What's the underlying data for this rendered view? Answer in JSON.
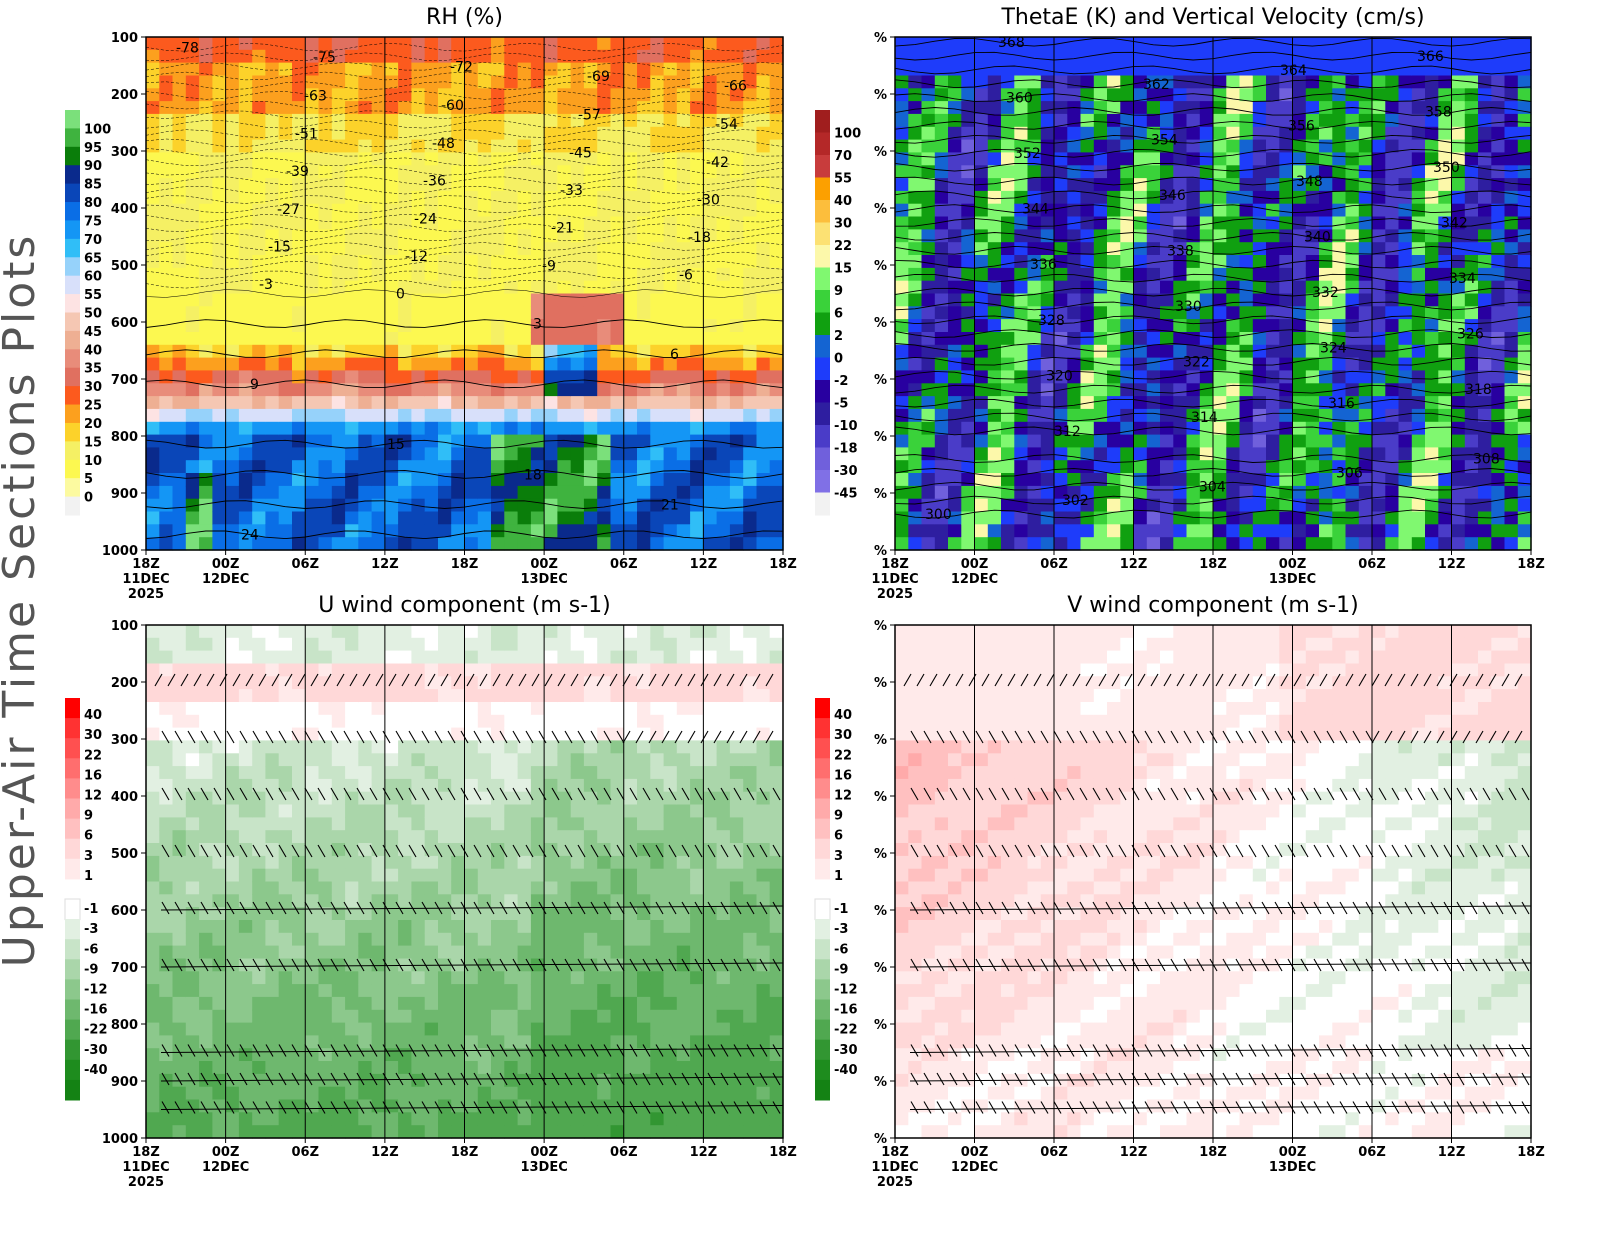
{
  "side_title": "Upper-Air Time Sections Plots",
  "colors": {
    "frame": "#000000",
    "side_title": "#555555"
  },
  "chart_data": [
    {
      "type": "heatmap",
      "title": "RH (%)",
      "x_ticks": [
        "18Z",
        "00Z",
        "06Z",
        "12Z",
        "18Z",
        "00Z",
        "06Z",
        "12Z",
        "18Z"
      ],
      "x_date_labels": [
        "11DEC",
        "12DEC",
        "",
        "",
        "",
        "13DEC",
        "",
        "",
        ""
      ],
      "x_year_label": "2025",
      "y_ticks": [
        "100",
        "200",
        "300",
        "400",
        "500",
        "600",
        "700",
        "800",
        "900",
        "1000"
      ],
      "ylim": [
        1000,
        100
      ],
      "colorbar": {
        "labels": [
          "100",
          "95",
          "90",
          "85",
          "80",
          "75",
          "70",
          "65",
          "60",
          "55",
          "50",
          "45",
          "40",
          "35",
          "30",
          "25",
          "20",
          "15",
          "10",
          "5",
          "0"
        ],
        "colors": [
          "#7be07b",
          "#3fb33f",
          "#0a7d0a",
          "#0a2a8c",
          "#0a46b8",
          "#0a6ee6",
          "#1496f5",
          "#30bef7",
          "#96d2fa",
          "#d8e0fa",
          "#fde3e3",
          "#f5c7b3",
          "#eeaf93",
          "#e88c7a",
          "#e07060",
          "#fc5a1e",
          "#fca01e",
          "#fcd22a",
          "#f5f064",
          "#fcf850",
          "#fcfaa0",
          "#f2f2f2"
        ]
      },
      "contour_labels": [
        "-78",
        "-75",
        "-72",
        "-69",
        "-66",
        "-63",
        "-60",
        "-57",
        "-54",
        "-51",
        "-48",
        "-45",
        "-42",
        "-39",
        "-36",
        "-33",
        "-30",
        "-27",
        "-24",
        "-21",
        "-18",
        "-15",
        "-12",
        "-9",
        "-6",
        "-3",
        "0",
        "3",
        "6",
        "9",
        "15",
        "18",
        "21",
        "24"
      ]
    },
    {
      "type": "heatmap",
      "title": "ThetaE (K) and Vertical Velocity (cm/s)",
      "x_ticks": [
        "18Z",
        "00Z",
        "06Z",
        "12Z",
        "18Z",
        "00Z",
        "06Z",
        "12Z",
        "18Z"
      ],
      "x_date_labels": [
        "11DEC",
        "12DEC",
        "",
        "",
        "",
        "13DEC",
        "",
        "",
        ""
      ],
      "x_year_label": "2025",
      "y_ticks": [
        "%",
        "%",
        "%",
        "%",
        "%",
        "%",
        "%",
        "%",
        "%",
        "%"
      ],
      "colorbar": {
        "labels": [
          "100",
          "70",
          "55",
          "40",
          "30",
          "22",
          "15",
          "9",
          "6",
          "2",
          "0",
          "-2",
          "-5",
          "-10",
          "-18",
          "-30",
          "-45"
        ],
        "colors": [
          "#a01e1e",
          "#b42828",
          "#c83c3c",
          "#fca000",
          "#fcbe3c",
          "#fce173",
          "#fcf8aa",
          "#80f870",
          "#3ad23a",
          "#10a010",
          "#1464d2",
          "#1e3cfa",
          "#2800a0",
          "#2e1ea0",
          "#4a3cc8",
          "#7060dc",
          "#8070e6",
          "#f2f2f2"
        ]
      },
      "contour_labels": [
        "300",
        "302",
        "304",
        "306",
        "308",
        "312",
        "314",
        "316",
        "318",
        "320",
        "322",
        "324",
        "326",
        "328",
        "330",
        "332",
        "334",
        "336",
        "338",
        "340",
        "342",
        "344",
        "346",
        "348",
        "350",
        "352",
        "354",
        "356",
        "358",
        "360",
        "362",
        "364",
        "366",
        "368"
      ]
    },
    {
      "type": "heatmap",
      "title": "U wind component (m s-1)",
      "x_ticks": [
        "18Z",
        "00Z",
        "06Z",
        "12Z",
        "18Z",
        "00Z",
        "06Z",
        "12Z",
        "18Z"
      ],
      "x_date_labels": [
        "11DEC",
        "12DEC",
        "",
        "",
        "",
        "13DEC",
        "",
        "",
        ""
      ],
      "x_year_label": "2025",
      "y_ticks": [
        "100",
        "200",
        "300",
        "400",
        "500",
        "600",
        "700",
        "800",
        "900",
        "1000"
      ],
      "ylim": [
        1000,
        100
      ],
      "colorbar": {
        "labels": [
          "40",
          "30",
          "22",
          "16",
          "12",
          "9",
          "6",
          "3",
          "1",
          "-1",
          "-3",
          "-6",
          "-9",
          "-12",
          "-16",
          "-22",
          "-30",
          "-40"
        ],
        "colors": [
          "#ff0000",
          "#ff3232",
          "#ff5050",
          "#ff6e6e",
          "#ff8c8c",
          "#ffaaaa",
          "#ffc0c0",
          "#ffd8d8",
          "#ffeaea",
          "#ffffff",
          "#e2f0e2",
          "#c8e4c8",
          "#aad6aa",
          "#8cc88c",
          "#6eb86e",
          "#50a850",
          "#329632",
          "#1e8c1e",
          "#148214"
        ]
      },
      "barbs": true
    },
    {
      "type": "heatmap",
      "title": "V wind component (m s-1)",
      "x_ticks": [
        "18Z",
        "00Z",
        "06Z",
        "12Z",
        "18Z",
        "00Z",
        "06Z",
        "12Z",
        "18Z"
      ],
      "x_date_labels": [
        "11DEC",
        "12DEC",
        "",
        "",
        "",
        "13DEC",
        "",
        "",
        ""
      ],
      "x_year_label": "2025",
      "y_ticks": [
        "%",
        "%",
        "%",
        "%",
        "%",
        "%",
        "%",
        "%",
        "%",
        "%"
      ],
      "colorbar": {
        "labels": [
          "40",
          "30",
          "22",
          "16",
          "12",
          "9",
          "6",
          "3",
          "1",
          "-1",
          "-3",
          "-6",
          "-9",
          "-12",
          "-16",
          "-22",
          "-30",
          "-40"
        ],
        "colors": [
          "#ff0000",
          "#ff3232",
          "#ff5050",
          "#ff6e6e",
          "#ff8c8c",
          "#ffaaaa",
          "#ffc0c0",
          "#ffd8d8",
          "#ffeaea",
          "#ffffff",
          "#e2f0e2",
          "#c8e4c8",
          "#aad6aa",
          "#8cc88c",
          "#6eb86e",
          "#50a850",
          "#329632",
          "#1e8c1e",
          "#148214"
        ]
      },
      "barbs": true
    }
  ]
}
